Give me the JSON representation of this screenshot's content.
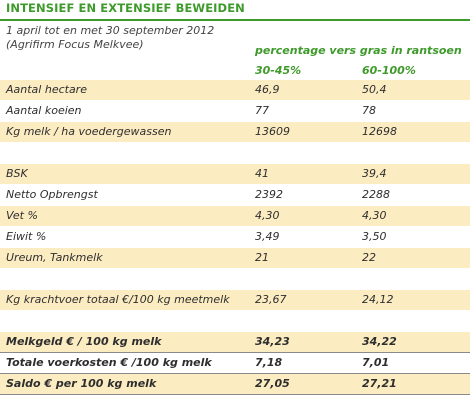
{
  "header": {
    "title": "INTENSIEF EN EXTENSIEF BEWEIDEN",
    "subtitle_lines": [
      "1 april tot en met 30 september 2012",
      "(Agrifirm Focus Melkvee)"
    ]
  },
  "table": {
    "column_group": "percentage vers gras in rantsoen",
    "columns": [
      "30-45%",
      "60-100%"
    ],
    "groups": [
      {
        "rows": [
          [
            "Aantal hectare",
            "46,9",
            "50,4"
          ],
          [
            "Aantal koeien",
            "77",
            "78"
          ],
          [
            "Kg melk / ha voedergewassen",
            "13609",
            "12698"
          ]
        ]
      },
      {
        "rows": [
          [
            "BSK",
            "41",
            "39,4"
          ],
          [
            "Netto Opbrengst",
            "2392",
            "2288"
          ],
          [
            "Vet %",
            "4,30",
            "4,30"
          ],
          [
            "Eiwit %",
            "3,49",
            "3,50"
          ],
          [
            "Ureum, Tankmelk",
            "21",
            "22"
          ]
        ]
      },
      {
        "rows": [
          [
            "Kg krachtvoer totaal €/100 kg meetmelk",
            "23,67",
            "24,12"
          ]
        ]
      },
      {
        "rows": [
          [
            "Melkgeld € / 100 kg melk",
            "34,23",
            "34,22"
          ],
          [
            "Totale voerkosten € /100 kg melk",
            "7,18",
            "7,01"
          ],
          [
            "Saldo € per 100 kg melk",
            "27,05",
            "27,21"
          ]
        ]
      }
    ]
  }
}
